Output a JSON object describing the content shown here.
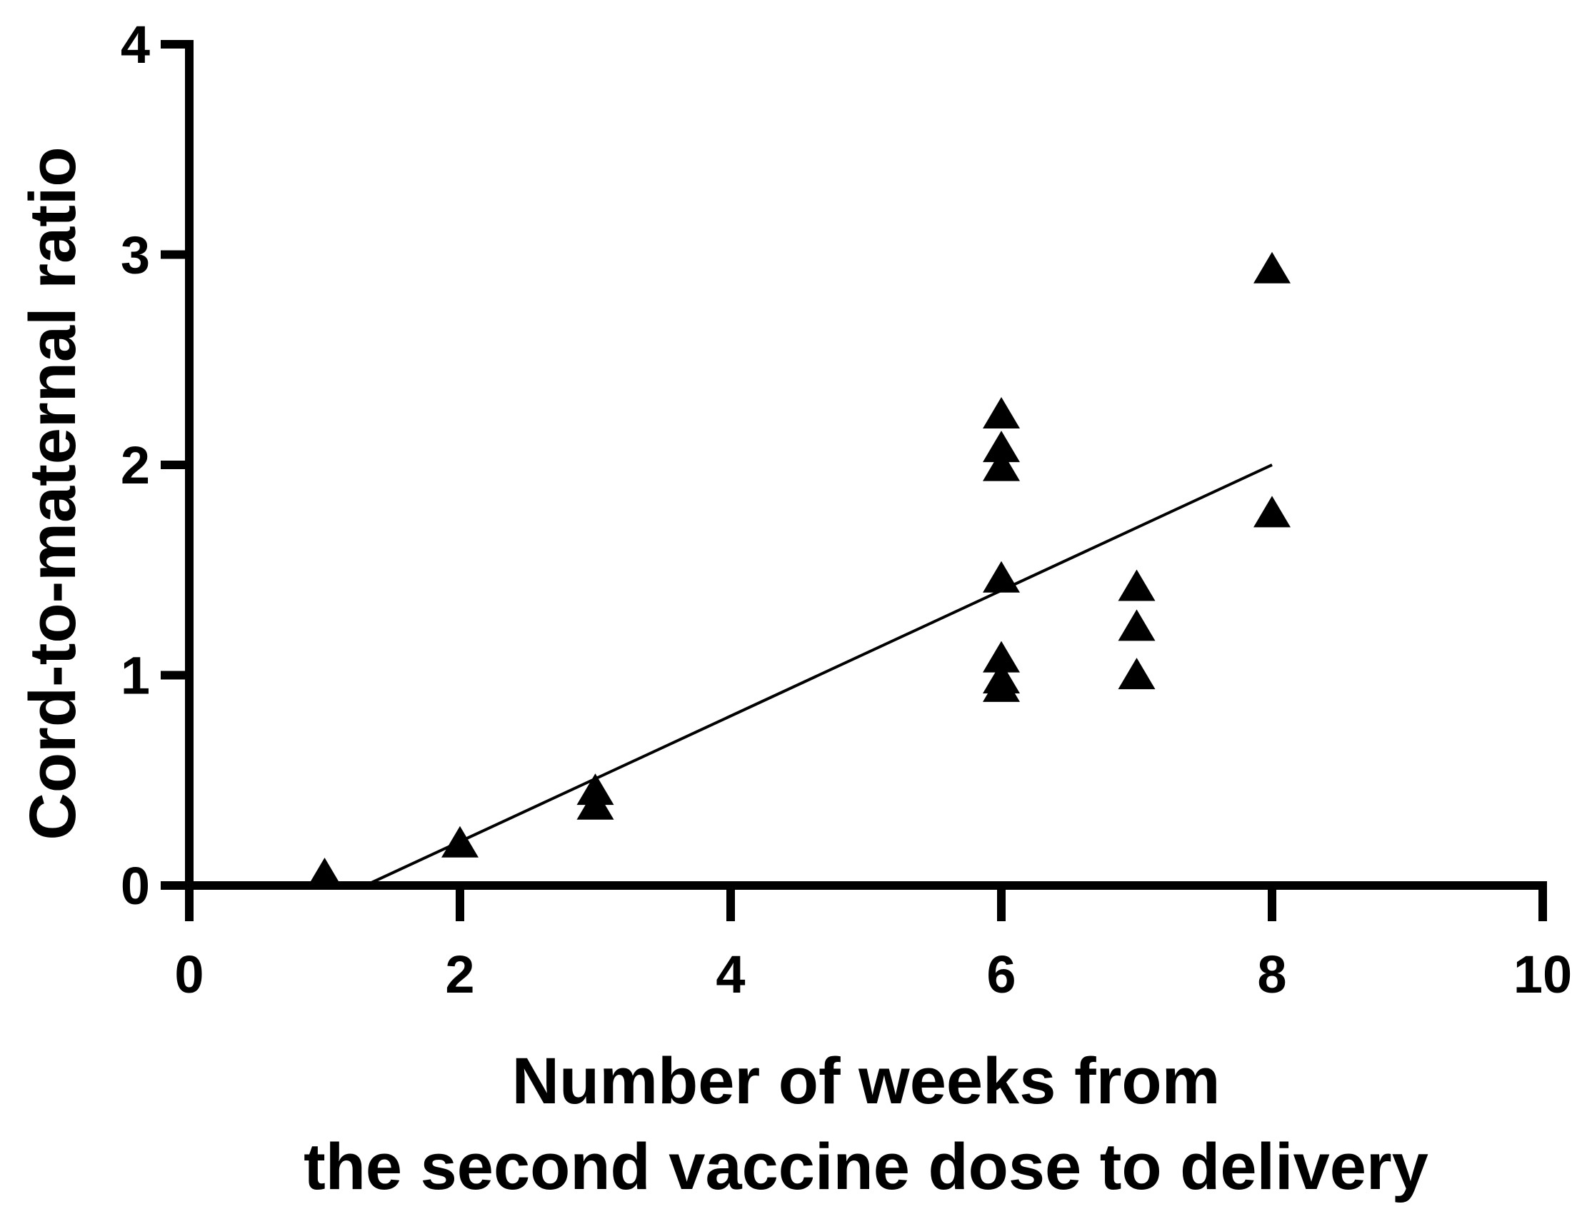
{
  "chart_data": {
    "type": "scatter",
    "xlabel_lines": [
      "Number of weeks from",
      "the second vaccine dose to delivery"
    ],
    "ylabel": "Cord-to-maternal ratio",
    "xlim": [
      0,
      10
    ],
    "ylim": [
      0,
      4
    ],
    "x_ticks": [
      "0",
      "2",
      "4",
      "6",
      "8",
      "10"
    ],
    "y_ticks": [
      "0",
      "1",
      "2",
      "3",
      "4"
    ],
    "grid": false,
    "marker": "triangle",
    "points": [
      {
        "x": 1,
        "y": 0.04
      },
      {
        "x": 2,
        "y": 0.19
      },
      {
        "x": 3,
        "y": 0.37
      },
      {
        "x": 3,
        "y": 0.44
      },
      {
        "x": 6,
        "y": 0.93
      },
      {
        "x": 6,
        "y": 0.97
      },
      {
        "x": 6,
        "y": 1.07
      },
      {
        "x": 6,
        "y": 1.45
      },
      {
        "x": 6,
        "y": 1.98
      },
      {
        "x": 6,
        "y": 2.07
      },
      {
        "x": 6,
        "y": 2.23
      },
      {
        "x": 7,
        "y": 0.99
      },
      {
        "x": 7,
        "y": 1.22
      },
      {
        "x": 7,
        "y": 1.41
      },
      {
        "x": 8,
        "y": 1.76
      },
      {
        "x": 8,
        "y": 2.92
      }
    ],
    "fit_line": {
      "x": [
        1.3,
        8
      ],
      "y": [
        0,
        2.0
      ]
    }
  }
}
